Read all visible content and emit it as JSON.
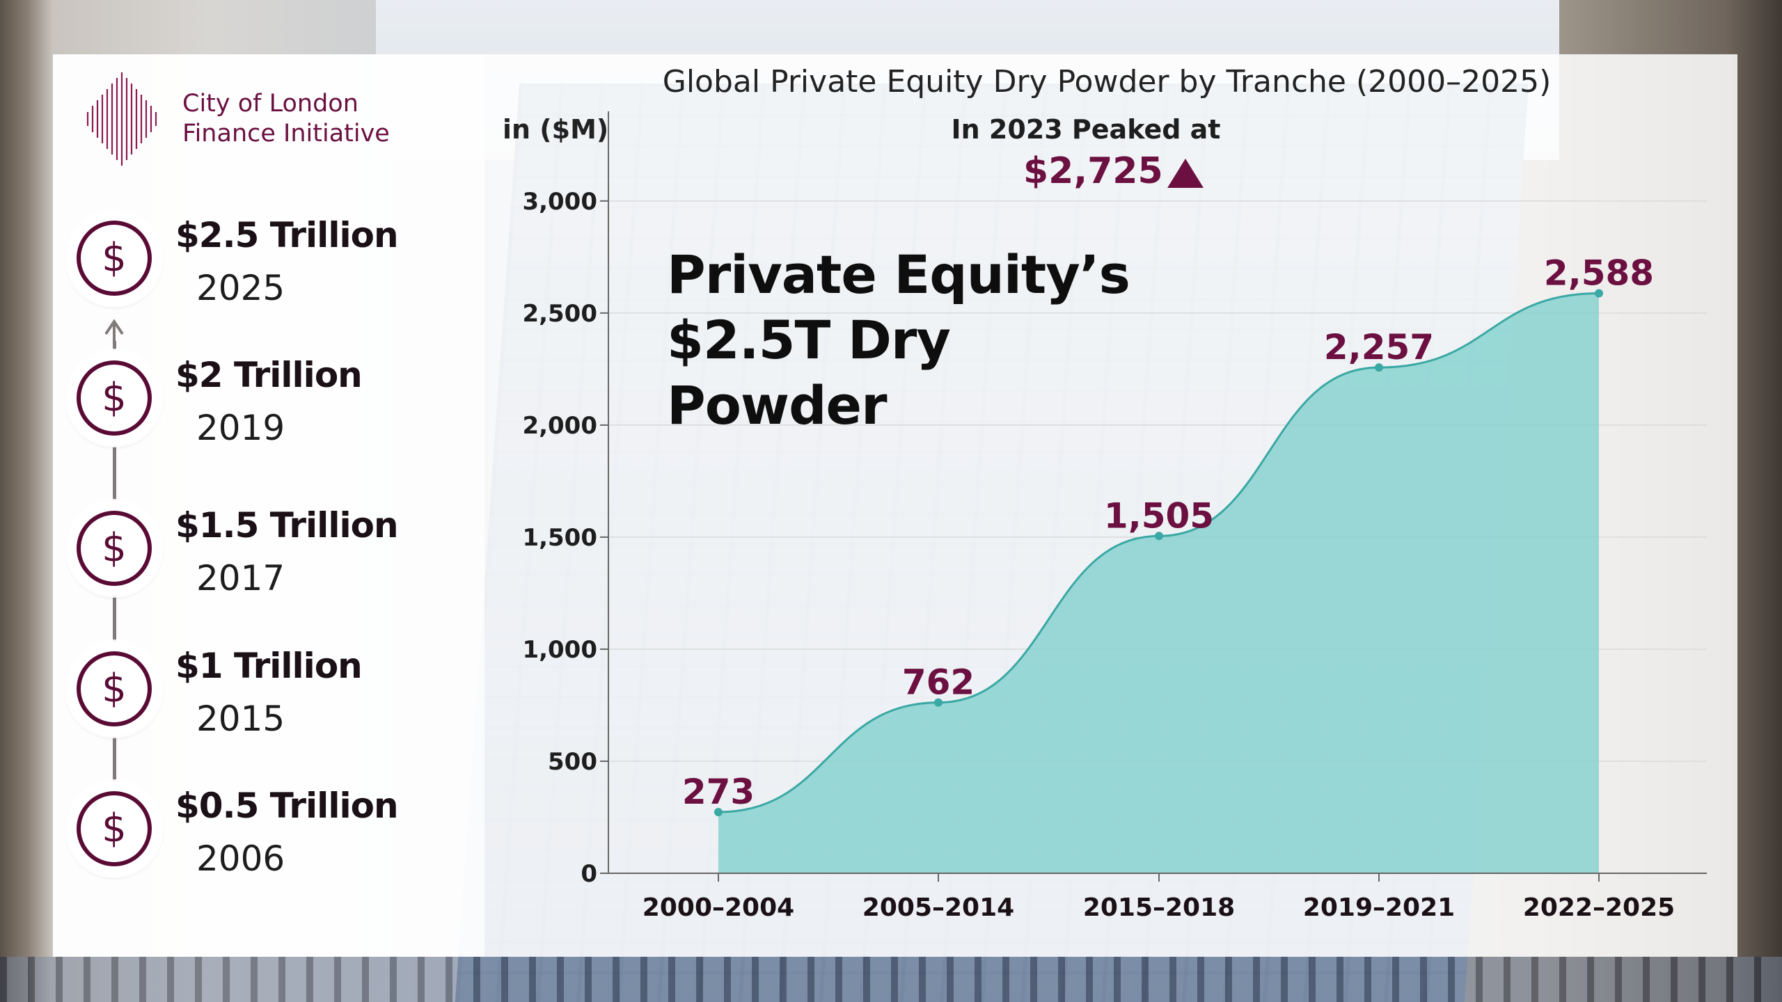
{
  "organization": {
    "name_line1": "City of London",
    "name_line2": "Finance Initiative"
  },
  "milestones": [
    {
      "amount": "$2.5 Trillion",
      "year": "2025",
      "icon": "dollar-coin-icon"
    },
    {
      "amount": "$2 Trillion",
      "year": "2019",
      "icon": "dollar-coin-icon"
    },
    {
      "amount": "$1.5 Trillion",
      "year": "2017",
      "icon": "dollar-coin-icon"
    },
    {
      "amount": "$1 Trillion",
      "year": "2015",
      "icon": "dollar-coin-icon"
    },
    {
      "amount": "$0.5 Trillion",
      "year": "2006",
      "icon": "dollar-coin-icon"
    }
  ],
  "headline": "Private Equity’s $2.5T Dry Powder",
  "peak": {
    "note": "In 2023 Peaked at",
    "value": "$2,725"
  },
  "colors": {
    "brand": "#6b1040",
    "area_fill": "#7fd0cc",
    "line": "#3aa8a4",
    "icon": "#5a0b35"
  },
  "chart_data": {
    "type": "area",
    "title": "Global Private Equity Dry Powder by Tranche (2000–2025)",
    "ylabel": "in ($M)",
    "xlabel": "",
    "categories": [
      "2000–2004",
      "2005–2014",
      "2015–2018",
      "2019–2021",
      "2022–2025"
    ],
    "values": [
      273,
      762,
      1505,
      2257,
      2588
    ],
    "data_labels": [
      "273",
      "762",
      "1,505",
      "2,257",
      "2,588"
    ],
    "ylim": [
      0,
      3400
    ],
    "yticks": [
      0,
      500,
      1000,
      1500,
      2000,
      2500,
      3000
    ],
    "ytick_labels": [
      "0",
      "500",
      "1,000",
      "1,500",
      "2,000",
      "2,500",
      "3,000"
    ],
    "grid": true,
    "smooth": true
  }
}
